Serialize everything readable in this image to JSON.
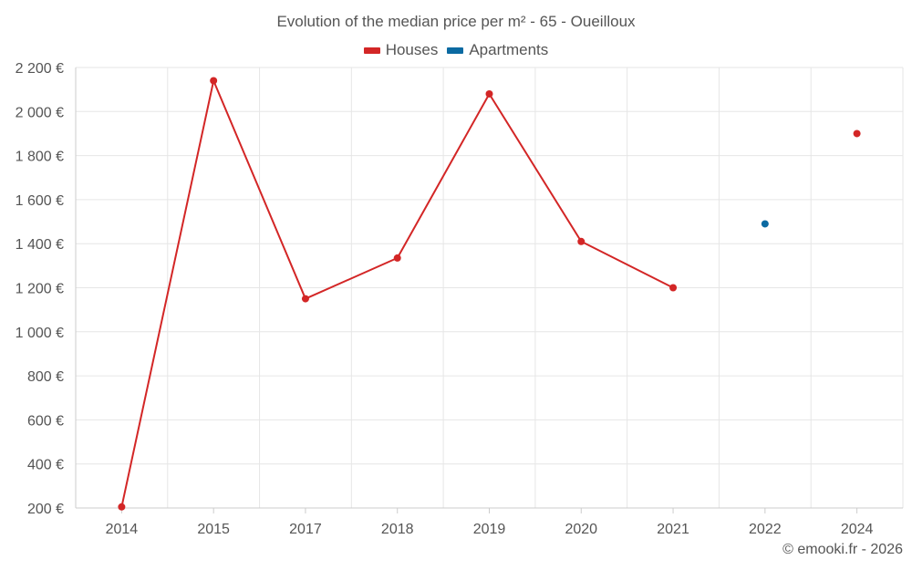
{
  "chart_data": {
    "type": "line",
    "title": "Evolution of the median price per m² - 65 - Oueilloux",
    "categories": [
      "2014",
      "2015",
      "2017",
      "2018",
      "2019",
      "2020",
      "2021",
      "2022",
      "2024"
    ],
    "y_tick_labels": [
      "200 €",
      "400 €",
      "600 €",
      "800 €",
      "1 000 €",
      "1 200 €",
      "1 400 €",
      "1 600 €",
      "1 800 €",
      "2 000 €",
      "2 200 €"
    ],
    "ylim": [
      200,
      2200
    ],
    "grid": true,
    "legend_position": "top-center",
    "series": [
      {
        "name": "Houses",
        "color": "#d32626",
        "values": [
          205,
          2140,
          1150,
          1335,
          2080,
          1410,
          1200,
          null,
          1900
        ]
      },
      {
        "name": "Apartments",
        "color": "#0b6aa2",
        "values": [
          null,
          null,
          null,
          null,
          null,
          null,
          null,
          1490,
          null
        ]
      }
    ]
  },
  "credit": "© emooki.fr - 2026"
}
